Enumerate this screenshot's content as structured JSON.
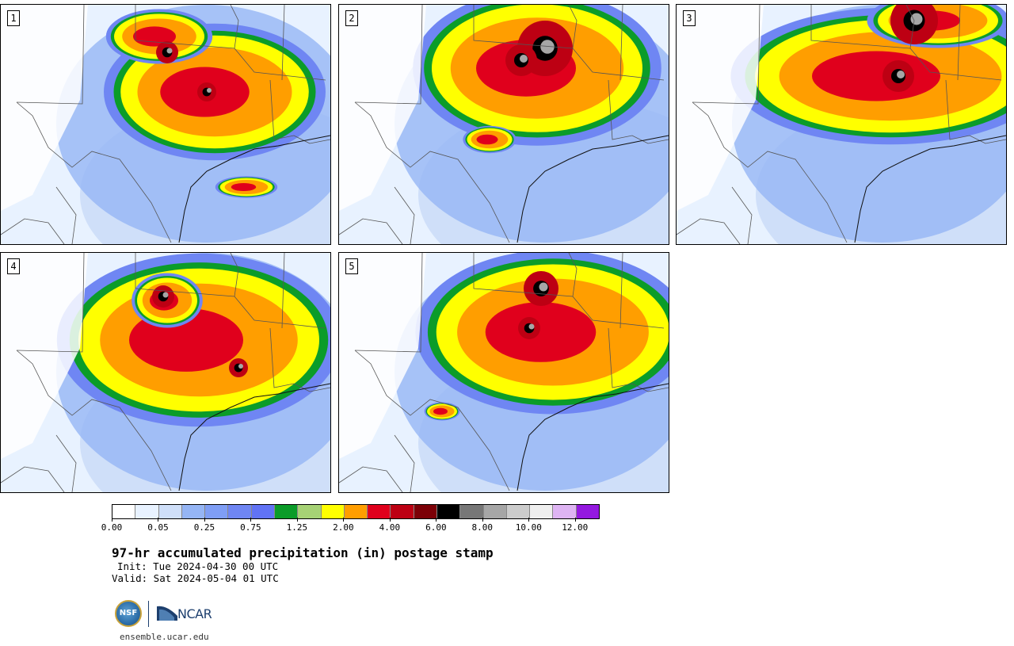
{
  "panels": [
    {
      "id": "1",
      "label": "1"
    },
    {
      "id": "2",
      "label": "2"
    },
    {
      "id": "3",
      "label": "3"
    },
    {
      "id": "4",
      "label": "4"
    },
    {
      "id": "5",
      "label": "5"
    }
  ],
  "colorbar": {
    "colors": [
      "#ffffff",
      "#e8f2ff",
      "#cfdff9",
      "#95b5f5",
      "#7f9ef5",
      "#6f86f3",
      "#6173f5",
      "#0b9c29",
      "#a6d275",
      "#ffff00",
      "#ff9e00",
      "#e0001c",
      "#bd0013",
      "#7c0007",
      "#000000",
      "#777777",
      "#a6a6a6",
      "#cccccc",
      "#efefef",
      "#deb4f3",
      "#9419e0"
    ],
    "tick_labels": [
      "0.00",
      "0.05",
      "0.25",
      "0.75",
      "1.25",
      "2.00",
      "4.00",
      "6.00",
      "8.00",
      "10.00",
      "12.00"
    ]
  },
  "title": "97-hr accumulated precipitation (in) postage stamp",
  "init": "Init: Tue 2024-04-30 00 UTC",
  "valid": "Valid: Sat 2024-05-04 01 UTC",
  "logos": {
    "nsf": "NSF",
    "ncar": "NCAR"
  },
  "site": "ensemble.ucar.edu"
}
